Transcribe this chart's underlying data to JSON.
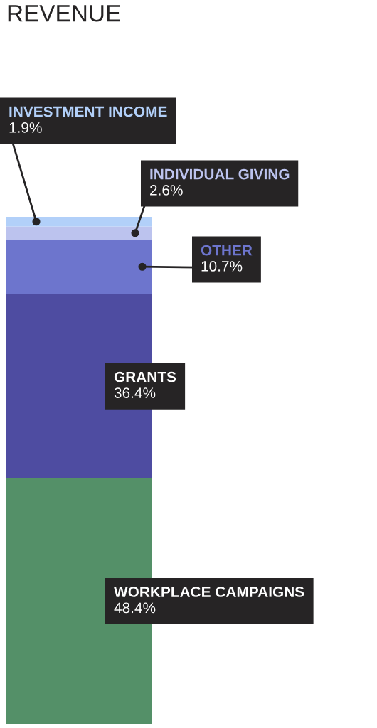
{
  "chart_data": {
    "type": "bar",
    "title": "REVENUE",
    "categories": [
      null
    ],
    "stacked": true,
    "series": [
      {
        "name": "WORKPLACE CAMPAIGNS",
        "color": "#549068",
        "values": [
          48.4
        ],
        "value_labels": [
          "48.4%"
        ]
      },
      {
        "name": "GRANTS",
        "color": "#4e4ca1",
        "values": [
          36.4
        ],
        "value_labels": [
          "36.4%"
        ]
      },
      {
        "name": "OTHER",
        "color": "#6d75cd",
        "values": [
          10.7
        ],
        "value_labels": [
          "10.7%"
        ]
      },
      {
        "name": "INDIVIDUAL GIVING",
        "color": "#bcc3ee",
        "values": [
          2.6
        ],
        "value_labels": [
          "2.6%"
        ]
      },
      {
        "name": "INVESTMENT INCOME",
        "color": "#b2d0f9",
        "values": [
          1.9
        ],
        "value_labels": [
          "1.9%"
        ]
      }
    ]
  }
}
